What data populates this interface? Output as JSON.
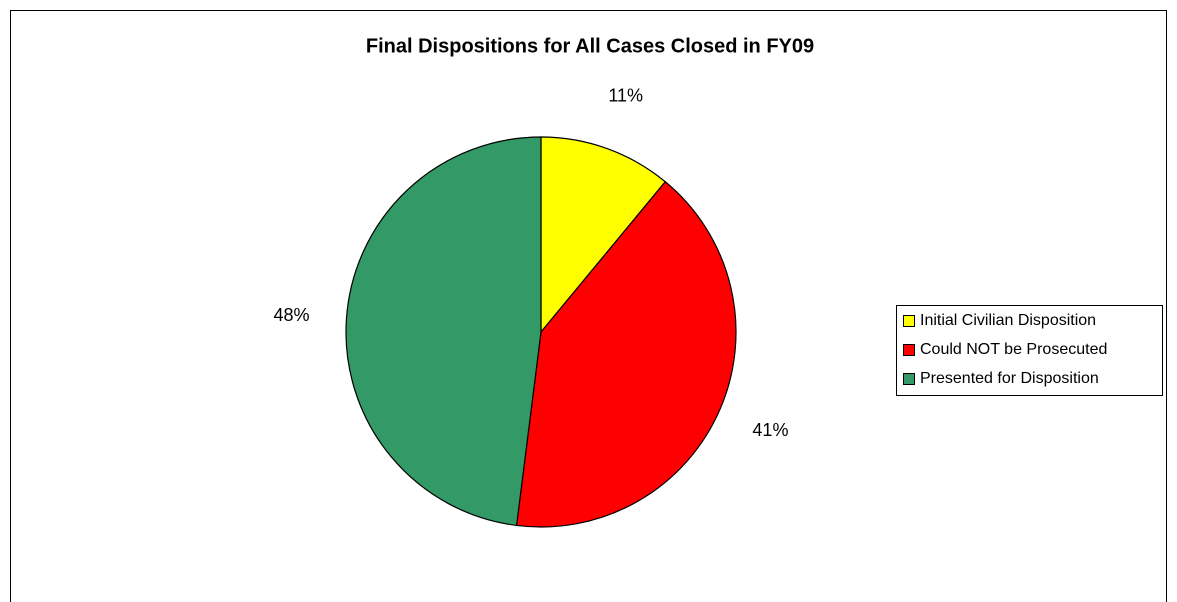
{
  "chart_data": {
    "type": "pie",
    "title": "Final Dispositions for All Cases Closed in FY09",
    "categories": [
      "Initial Civilian Disposition",
      "Could NOT be Prosecuted",
      "Presented for Disposition"
    ],
    "values": [
      11,
      41,
      48
    ],
    "value_labels": [
      "11%",
      "41%",
      "48%"
    ],
    "colors": [
      "#ffff00",
      "#ff0000",
      "#339966"
    ],
    "legend": "right"
  }
}
